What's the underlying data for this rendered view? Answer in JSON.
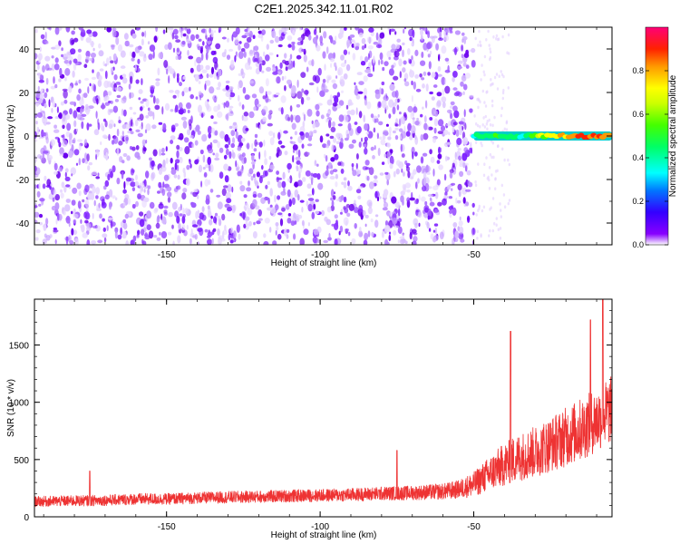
{
  "title": "C2E1.2025.342.11.01.R02",
  "chart_data": [
    {
      "type": "heatmap",
      "name": "spectrogram",
      "xlabel": "Height of straight line (km)",
      "ylabel": "Frequency (Hz)",
      "xlim": [
        -193,
        -5
      ],
      "ylim": [
        -50,
        50
      ],
      "xticks": [
        -150,
        -100,
        -50
      ],
      "yticks": [
        -40,
        -20,
        0,
        20,
        40
      ],
      "noise_region_x": [
        -193,
        -50
      ],
      "signal": {
        "x_range": [
          -50,
          -5
        ],
        "frequency_hz": 0,
        "points": [
          {
            "x": -50,
            "amp": 0.4
          },
          {
            "x": -45,
            "amp": 0.55
          },
          {
            "x": -40,
            "amp": 0.5
          },
          {
            "x": -35,
            "amp": 0.45
          },
          {
            "x": -30,
            "amp": 0.6
          },
          {
            "x": -25,
            "amp": 0.75
          },
          {
            "x": -20,
            "amp": 0.8
          },
          {
            "x": -15,
            "amp": 0.9
          },
          {
            "x": -10,
            "amp": 0.9
          },
          {
            "x": -5,
            "amp": 0.85
          }
        ]
      },
      "colorbar": {
        "label": "Normalized spectral amplitude",
        "range": [
          0,
          1
        ],
        "ticks": [
          0.0,
          0.2,
          0.4,
          0.6,
          0.8
        ],
        "tick_labels": [
          "0.0",
          "0.2",
          "0.4",
          "0.6",
          "0.8"
        ]
      }
    },
    {
      "type": "line",
      "name": "snr",
      "xlabel": "Height of straight line (km)",
      "ylabel": "SNR (10 * v/v)",
      "xlim": [
        -193,
        -5
      ],
      "ylim": [
        0,
        1900
      ],
      "xticks": [
        -150,
        -100,
        -50
      ],
      "yticks": [
        0,
        500,
        1000,
        1500
      ],
      "color": "#ee3333",
      "series": [
        {
          "name": "SNR",
          "x": [
            -193,
            -180,
            -170,
            -160,
            -150,
            -140,
            -130,
            -120,
            -110,
            -100,
            -90,
            -80,
            -70,
            -60,
            -55,
            -50,
            -45,
            -40,
            -35,
            -30,
            -25,
            -20,
            -15,
            -10,
            -5
          ],
          "baseline": [
            120,
            125,
            130,
            140,
            140,
            150,
            155,
            160,
            165,
            170,
            175,
            185,
            190,
            200,
            215,
            250,
            330,
            400,
            460,
            500,
            560,
            620,
            680,
            760,
            850
          ],
          "spread": [
            90,
            95,
            95,
            100,
            100,
            100,
            105,
            105,
            110,
            110,
            115,
            120,
            125,
            140,
            160,
            220,
            300,
            380,
            420,
            450,
            480,
            520,
            550,
            560,
            600
          ],
          "spikes": [
            {
              "x": -38,
              "y": 1620
            },
            {
              "x": -8,
              "y": 1920
            },
            {
              "x": -12,
              "y": 1720
            },
            {
              "x": -75,
              "y": 580
            },
            {
              "x": -175,
              "y": 400
            }
          ]
        }
      ]
    }
  ]
}
